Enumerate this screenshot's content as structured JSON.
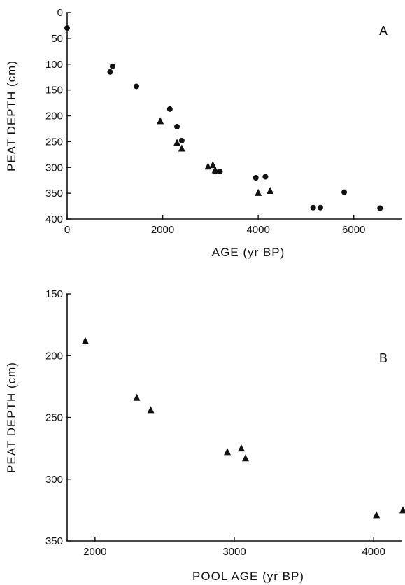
{
  "chart_data": [
    {
      "type": "scatter",
      "panel_label": "A",
      "xlabel": "AGE (yr BP)",
      "ylabel": "PEAT DEPTH (cm)",
      "xlim": [
        0,
        7000
      ],
      "ylim": [
        400,
        0
      ],
      "y_inverted": true,
      "xticks": [
        0,
        2000,
        4000,
        6000
      ],
      "yticks": [
        0,
        50,
        100,
        150,
        200,
        250,
        300,
        350,
        400
      ],
      "grid": false,
      "series": [
        {
          "marker": "circle",
          "points": [
            [
              0,
              30
            ],
            [
              900,
              115
            ],
            [
              950,
              104
            ],
            [
              1450,
              143
            ],
            [
              2150,
              187
            ],
            [
              2300,
              221
            ],
            [
              2400,
              248
            ],
            [
              3100,
              308
            ],
            [
              3200,
              308
            ],
            [
              3950,
              320
            ],
            [
              4150,
              318
            ],
            [
              5150,
              378
            ],
            [
              5300,
              378
            ],
            [
              5800,
              348
            ],
            [
              6550,
              379
            ]
          ]
        },
        {
          "marker": "triangle",
          "points": [
            [
              1950,
              210
            ],
            [
              2300,
              252
            ],
            [
              2400,
              263
            ],
            [
              2950,
              298
            ],
            [
              3050,
              295
            ],
            [
              3100,
              305
            ],
            [
              4000,
              349
            ],
            [
              4250,
              345
            ]
          ]
        }
      ]
    },
    {
      "type": "scatter",
      "panel_label": "B",
      "xlabel": "POOL AGE (yr BP)",
      "ylabel": "PEAT DEPTH (cm)",
      "xlim": [
        1800,
        4200
      ],
      "ylim": [
        350,
        150
      ],
      "y_inverted": true,
      "xticks": [
        2000,
        3000,
        4000
      ],
      "yticks": [
        150,
        200,
        250,
        300,
        350
      ],
      "grid": false,
      "series": [
        {
          "marker": "triangle",
          "points": [
            [
              1930,
              188
            ],
            [
              2300,
              234
            ],
            [
              2400,
              244
            ],
            [
              2950,
              278
            ],
            [
              3050,
              275
            ],
            [
              3080,
              283
            ],
            [
              4020,
              329
            ],
            [
              4210,
              325
            ]
          ]
        }
      ]
    }
  ]
}
